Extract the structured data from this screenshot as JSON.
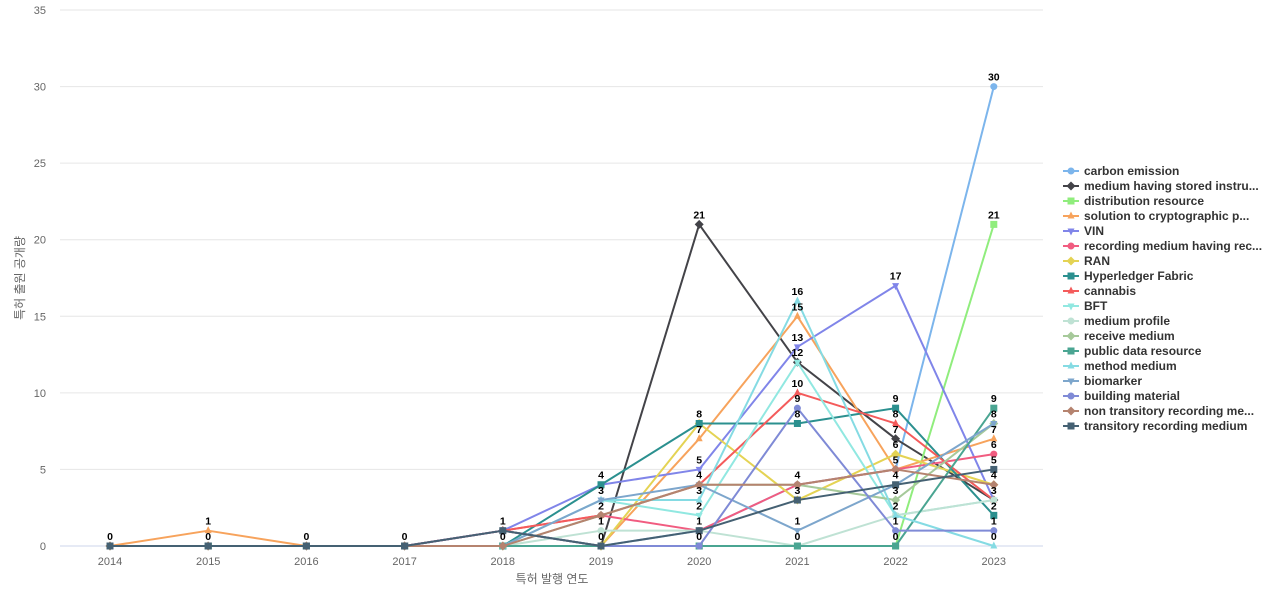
{
  "chart_data": {
    "type": "line",
    "xlabel": "특허 발행 연도",
    "ylabel": "특허 출원 공개량",
    "ylim": [
      0,
      35
    ],
    "yticks": [
      0,
      5,
      10,
      15,
      20,
      25,
      30,
      35
    ],
    "categories": [
      "2014",
      "2015",
      "2016",
      "2017",
      "2018",
      "2019",
      "2020",
      "2021",
      "2022",
      "2023"
    ],
    "grid": true,
    "legend_position": "right",
    "series": [
      {
        "name": "carbon emission",
        "color": "#7cb5ec",
        "marker": "circle",
        "values": [
          0,
          0,
          0,
          0,
          1,
          0,
          1,
          4,
          5,
          30
        ]
      },
      {
        "name": "medium having stored instru...",
        "color": "#434348",
        "marker": "diamond",
        "values": [
          0,
          0,
          0,
          0,
          1,
          0,
          21,
          12,
          7,
          3
        ]
      },
      {
        "name": "distribution resource",
        "color": "#90ed7d",
        "marker": "square",
        "values": [
          0,
          0,
          0,
          0,
          0,
          0,
          0,
          0,
          0,
          21
        ]
      },
      {
        "name": "solution to cryptographic p...",
        "color": "#f7a35c",
        "marker": "triangle",
        "values": [
          0,
          1,
          0,
          0,
          1,
          0,
          7,
          15,
          5,
          7
        ]
      },
      {
        "name": "VIN",
        "color": "#8085e9",
        "marker": "triangle-down",
        "values": [
          0,
          0,
          0,
          0,
          1,
          4,
          5,
          13,
          17,
          3
        ]
      },
      {
        "name": "recording medium having rec...",
        "color": "#f15c80",
        "marker": "circle",
        "values": [
          0,
          0,
          0,
          0,
          1,
          2,
          1,
          4,
          5,
          6
        ]
      },
      {
        "name": "RAN",
        "color": "#e4d354",
        "marker": "diamond",
        "values": [
          0,
          0,
          0,
          0,
          0,
          0,
          8,
          3,
          6,
          4
        ]
      },
      {
        "name": "Hyperledger Fabric",
        "color": "#2b908f",
        "marker": "square",
        "values": [
          0,
          0,
          0,
          0,
          0,
          4,
          8,
          8,
          9,
          2
        ]
      },
      {
        "name": "cannabis",
        "color": "#f45b5b",
        "marker": "triangle",
        "values": [
          0,
          0,
          0,
          0,
          1,
          2,
          4,
          10,
          8,
          3
        ]
      },
      {
        "name": "BFT",
        "color": "#91e8e1",
        "marker": "triangle-down",
        "values": [
          0,
          0,
          0,
          0,
          0,
          3,
          2,
          12,
          2,
          3
        ]
      },
      {
        "name": "medium profile",
        "color": "#bfe2d4",
        "marker": "circle",
        "values": [
          0,
          0,
          0,
          0,
          0,
          1,
          1,
          0,
          2,
          3
        ]
      },
      {
        "name": "receive medium",
        "color": "#a6c99a",
        "marker": "diamond",
        "values": [
          0,
          0,
          0,
          0,
          0,
          2,
          4,
          4,
          3,
          8
        ]
      },
      {
        "name": "public data resource",
        "color": "#4aa592",
        "marker": "square",
        "values": [
          0,
          0,
          0,
          0,
          0,
          0,
          0,
          0,
          0,
          9
        ]
      },
      {
        "name": "method medium",
        "color": "#85dbe3",
        "marker": "triangle",
        "values": [
          0,
          0,
          0,
          0,
          0,
          3,
          3,
          16,
          2,
          0
        ]
      },
      {
        "name": "biomarker",
        "color": "#7da6cc",
        "marker": "triangle-down",
        "values": [
          0,
          0,
          0,
          0,
          0,
          3,
          4,
          1,
          4,
          8
        ]
      },
      {
        "name": "building material",
        "color": "#7f8ad6",
        "marker": "circle",
        "values": [
          0,
          0,
          0,
          0,
          1,
          0,
          0,
          9,
          1,
          1
        ]
      },
      {
        "name": "non transitory recording me...",
        "color": "#b5836f",
        "marker": "diamond",
        "values": [
          0,
          0,
          0,
          0,
          0,
          2,
          4,
          4,
          5,
          4
        ]
      },
      {
        "name": "transitory recording medium",
        "color": "#456173",
        "marker": "square",
        "values": [
          0,
          0,
          0,
          0,
          1,
          0,
          1,
          3,
          4,
          5
        ]
      }
    ]
  }
}
